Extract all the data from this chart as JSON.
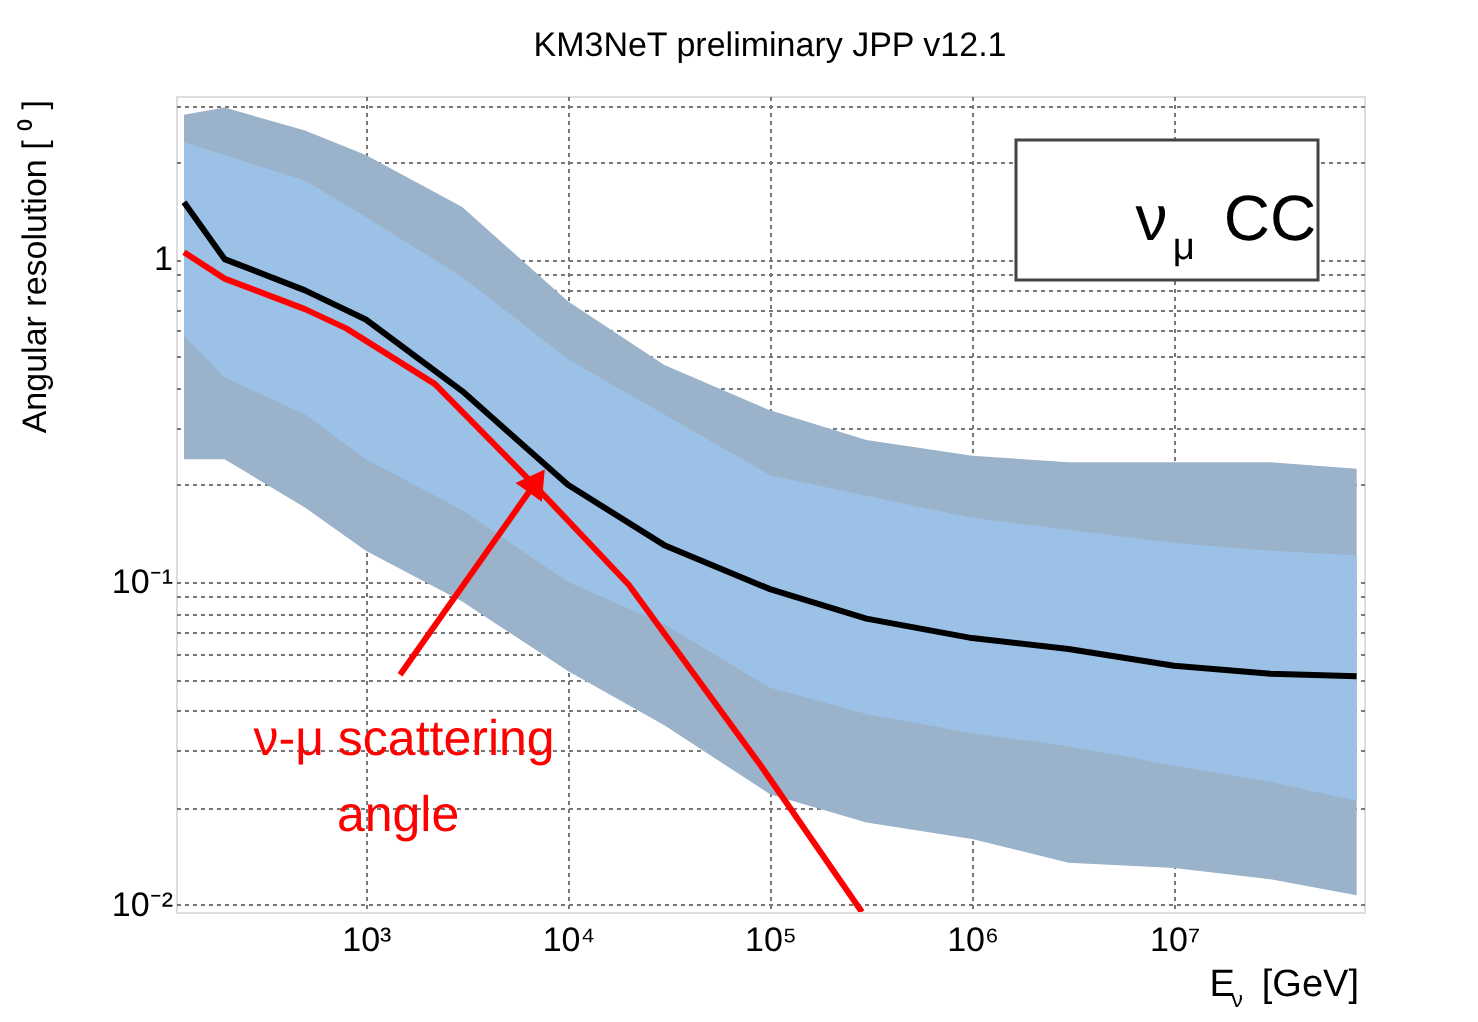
{
  "chart_data": {
    "type": "line",
    "title": "KM3NeT preliminary JPP v12.1",
    "xlabel": "E$_{ν}$ [GeV]",
    "ylabel": "Angular resolution [ ⁰ ]",
    "log": "xy",
    "xlim": [
      115,
      87000000
    ],
    "ylim": [
      0.0095,
      3.2
    ],
    "xticks": [
      {
        "value": 1000,
        "label": "10³"
      },
      {
        "value": 10000,
        "label": "10⁴"
      },
      {
        "value": 100000,
        "label": "10⁵"
      },
      {
        "value": 1000000,
        "label": "10⁶"
      },
      {
        "value": 10000000,
        "label": "10⁷"
      }
    ],
    "yticks": [
      {
        "value": 0.01,
        "label": "10⁻²"
      },
      {
        "value": 0.02,
        "label": null
      },
      {
        "value": 0.03,
        "label": null
      },
      {
        "value": 0.04,
        "label": null
      },
      {
        "value": 0.05,
        "label": null
      },
      {
        "value": 0.06,
        "label": null
      },
      {
        "value": 0.07,
        "label": null
      },
      {
        "value": 0.08,
        "label": null
      },
      {
        "value": 0.09,
        "label": null
      },
      {
        "value": 0.1,
        "label": "10⁻¹"
      },
      {
        "value": 0.2,
        "label": null
      },
      {
        "value": 0.3,
        "label": null
      },
      {
        "value": 0.4,
        "label": null
      },
      {
        "value": 0.5,
        "label": null
      },
      {
        "value": 0.6,
        "label": null
      },
      {
        "value": 0.7,
        "label": null
      },
      {
        "value": 0.8,
        "label": null
      },
      {
        "value": 0.9,
        "label": null
      },
      1,
      {
        "value": 2,
        "label": null
      },
      {
        "value": 3,
        "label": null
      }
    ],
    "grid": true,
    "line_style": "solid",
    "marker": "none",
    "series": [
      {
        "color": "#9ab2ca",
        "x": [
          126,
          200,
          500,
          1000,
          3000,
          10000,
          30000,
          100000,
          300000,
          1000000,
          3000000,
          10000000,
          30000000,
          80000000
        ],
        "values": [
          null,
          null,
          null,
          null,
          null,
          null,
          null,
          null,
          null,
          null,
          null,
          null,
          null,
          null
        ],
        "lower": [
          0.24,
          0.24,
          0.17,
          0.125,
          0.087,
          0.053,
          0.036,
          0.022,
          0.018,
          0.016,
          0.0135,
          0.013,
          0.012,
          0.0107
        ],
        "upper": [
          2.8,
          2.95,
          2.5,
          2.1,
          1.45,
          0.74,
          0.47,
          0.34,
          0.275,
          0.246,
          0.235,
          0.235,
          0.235,
          0.224
        ]
      },
      {
        "color": "#9bc2e6",
        "x": [
          126,
          200,
          500,
          1000,
          3000,
          10000,
          30000,
          100000,
          300000,
          1000000,
          3000000,
          10000000,
          30000000,
          80000000
        ],
        "values": [
          null,
          null,
          null,
          null,
          null,
          null,
          null,
          null,
          null,
          null,
          null,
          null,
          null,
          null
        ],
        "lower": [
          0.58,
          0.43,
          0.33,
          0.24,
          0.167,
          0.1,
          0.074,
          0.047,
          0.039,
          0.034,
          0.031,
          0.027,
          0.024,
          0.021
        ],
        "upper": [
          2.3,
          2.1,
          1.75,
          1.35,
          0.88,
          0.49,
          0.33,
          0.214,
          0.185,
          0.158,
          0.145,
          0.132,
          0.125,
          0.121
        ]
      },
      {
        "color": "#000000",
        "x": [
          126,
          200,
          500,
          1000,
          3000,
          10000,
          30000,
          100000,
          300000,
          1000000,
          3000000,
          10000000,
          30000000,
          80000000
        ],
        "values": [
          1.5,
          1.0,
          0.8,
          0.65,
          0.39,
          0.2,
          0.13,
          0.095,
          0.077,
          0.067,
          0.062,
          0.055,
          0.052,
          0.051
        ]
      },
      {
        "color": "#ff0000",
        "x": [
          126,
          200,
          500,
          800,
          2200,
          6800,
          20000,
          90000,
          285000
        ],
        "values": [
          1.05,
          0.87,
          0.7,
          0.61,
          0.41,
          0.2,
          0.098,
          0.027,
          0.0095
        ]
      }
    ],
    "annotations": [
      {
        "text": "ν-μ scattering angle",
        "x": 6800,
        "y": 0.2
      },
      "ν$_{μ}$ CC"
    ]
  }
}
